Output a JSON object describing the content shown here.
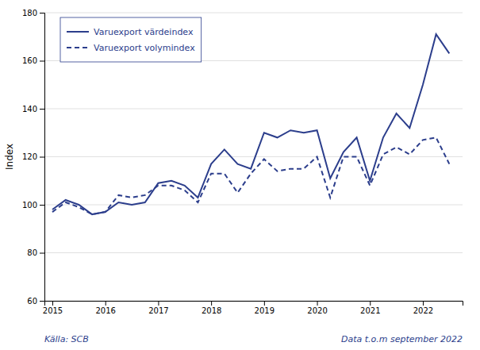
{
  "chart_data": {
    "type": "line",
    "y_label": "Index",
    "annotations": [
      "Källa: SCB",
      "Data t.o.m september 2022"
    ],
    "x": [
      2015.0,
      2015.25,
      2015.5,
      2015.75,
      2016.0,
      2016.25,
      2016.5,
      2016.75,
      2017.0,
      2017.25,
      2017.5,
      2017.75,
      2018.0,
      2018.25,
      2018.5,
      2018.75,
      2019.0,
      2019.25,
      2019.5,
      2019.75,
      2020.0,
      2020.25,
      2020.5,
      2020.75,
      2021.0,
      2021.25,
      2021.5,
      2021.75,
      2022.0,
      2022.25,
      2022.5
    ],
    "series": [
      {
        "name": "Varuexport värdeindex",
        "color": "#2C3E8C",
        "line_style": "solid",
        "values": [
          98,
          102,
          100,
          96,
          97,
          101,
          100,
          101,
          109,
          110,
          108,
          103,
          117,
          123,
          117,
          115,
          130,
          128,
          131,
          130,
          131,
          111,
          122,
          128,
          110,
          128,
          138,
          132,
          150,
          171,
          163
        ]
      },
      {
        "name": "Varuexport volymindex",
        "color": "#2C3E8C",
        "line_style": "dashed",
        "values": [
          97,
          101,
          99,
          96,
          97,
          104,
          103,
          104,
          108,
          108,
          106,
          101,
          113,
          113,
          105,
          113,
          119,
          114,
          115,
          115,
          120,
          103,
          120,
          120,
          108,
          121,
          124,
          121,
          127,
          128,
          117
        ]
      }
    ],
    "xlim": [
      2014.85,
      2022.75
    ],
    "xticks": [
      2015,
      2016,
      2017,
      2018,
      2019,
      2020,
      2021,
      2022
    ],
    "ylim": [
      60,
      180
    ],
    "yticks": [
      60,
      80,
      100,
      120,
      140,
      160,
      180
    ],
    "grid": true,
    "legend": "upper left"
  }
}
